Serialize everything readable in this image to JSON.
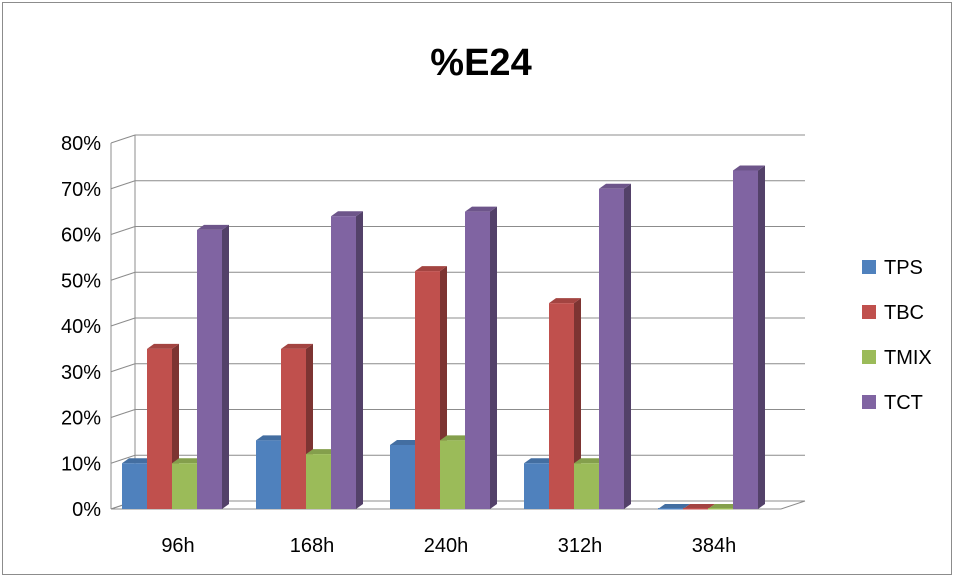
{
  "chart_data": {
    "type": "bar",
    "title": "%E24",
    "categories": [
      "96h",
      "168h",
      "240h",
      "312h",
      "384h"
    ],
    "series": [
      {
        "name": "TPS",
        "values": [
          10,
          15,
          14,
          10,
          0
        ],
        "color": "#4F81BD"
      },
      {
        "name": "TBC",
        "values": [
          35,
          35,
          52,
          45,
          0
        ],
        "color": "#C0504D"
      },
      {
        "name": "TMIX",
        "values": [
          10,
          12,
          15,
          10,
          0
        ],
        "color": "#9BBB59"
      },
      {
        "name": "TCT",
        "values": [
          61,
          64,
          65,
          70,
          74
        ],
        "color": "#8064A2"
      }
    ],
    "ylim": [
      0,
      80
    ],
    "yticks": [
      "0%",
      "10%",
      "20%",
      "30%",
      "40%",
      "50%",
      "60%",
      "70%",
      "80%"
    ],
    "xlabel": "",
    "ylabel": "",
    "grid": true,
    "legend": "right",
    "style": "3d-clustered-column"
  }
}
